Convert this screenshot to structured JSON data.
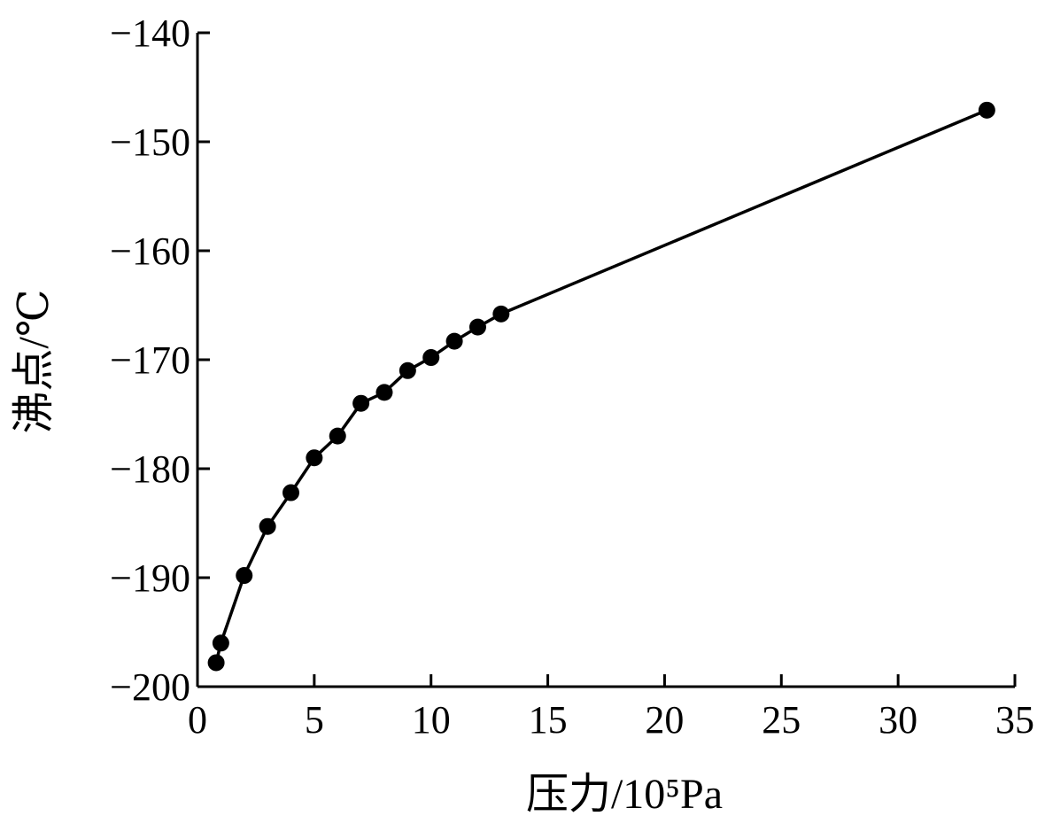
{
  "chart_data": {
    "type": "line",
    "xlabel": "压力/10⁵Pa",
    "ylabel": "沸点/℃",
    "xlim": [
      0,
      35
    ],
    "ylim": [
      -200,
      -140
    ],
    "xticks": [
      0,
      5,
      10,
      15,
      20,
      25,
      30,
      35
    ],
    "yticks": [
      -200,
      -190,
      -180,
      -170,
      -160,
      -150,
      -140
    ],
    "ytick_labels": [
      "−200",
      "−190",
      "−180",
      "−170",
      "−160",
      "−150",
      "−140"
    ],
    "grid": false,
    "markers": "filled-circle",
    "series": [
      {
        "color": "#000000",
        "x": [
          0.8,
          1,
          2,
          3,
          4,
          5,
          6,
          7,
          8,
          9,
          10,
          11,
          12,
          13,
          33.8
        ],
        "y": [
          -197.8,
          -196,
          -189.8,
          -185.3,
          -182.2,
          -179,
          -177,
          -174,
          -173,
          -171,
          -169.8,
          -168.3,
          -167,
          -165.8,
          -147.1
        ]
      }
    ]
  }
}
